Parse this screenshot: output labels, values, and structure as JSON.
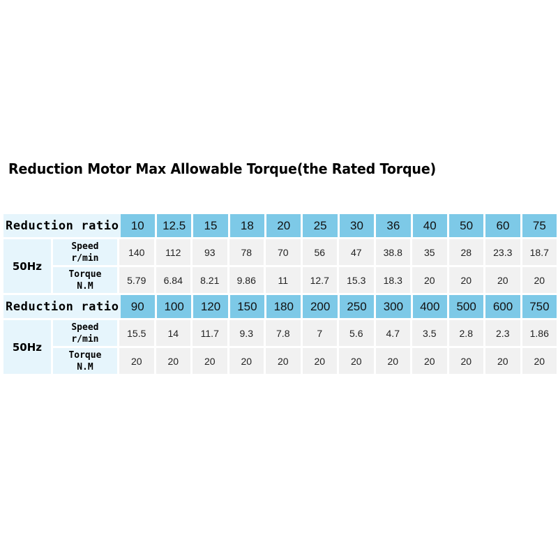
{
  "title": "Reduction Motor Max Allowable Torque(the Rated Torque)",
  "table": {
    "blocks": [
      {
        "ratio_label": "Reduction ratio",
        "ratios": [
          "10",
          "12.5",
          "15",
          "18",
          "20",
          "25",
          "30",
          "36",
          "40",
          "50",
          "60",
          "75"
        ],
        "frequency": "50Hz",
        "speed_label": [
          "Speed",
          "r/min"
        ],
        "torque_label": [
          "Torque",
          "N.M"
        ],
        "speed": [
          "140",
          "112",
          "93",
          "78",
          "70",
          "56",
          "47",
          "38.8",
          "35",
          "28",
          "23.3",
          "18.7"
        ],
        "torque": [
          "5.79",
          "6.84",
          "8.21",
          "9.86",
          "11",
          "12.7",
          "15.3",
          "18.3",
          "20",
          "20",
          "20",
          "20"
        ]
      },
      {
        "ratio_label": "Reduction ratio",
        "ratios": [
          "90",
          "100",
          "120",
          "150",
          "180",
          "200",
          "250",
          "300",
          "400",
          "500",
          "600",
          "750"
        ],
        "frequency": "50Hz",
        "speed_label": [
          "Speed",
          "r/min"
        ],
        "torque_label": [
          "Torque",
          "N.M"
        ],
        "speed": [
          "15.5",
          "14",
          "11.7",
          "9.3",
          "7.8",
          "7",
          "5.6",
          "4.7",
          "3.5",
          "2.8",
          "2.3",
          "1.86"
        ],
        "torque": [
          "20",
          "20",
          "20",
          "20",
          "20",
          "20",
          "20",
          "20",
          "20",
          "20",
          "20",
          "20"
        ]
      }
    ]
  },
  "colors": {
    "header_cell": "#7dc9e7",
    "label_cell": "#e6f5fc",
    "value_cell": "#f1f1f1"
  }
}
